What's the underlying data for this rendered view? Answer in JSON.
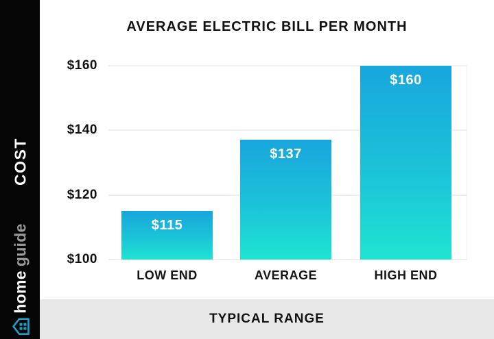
{
  "header": {
    "title": "AVERAGE ELECTRIC BILL PER MONTH"
  },
  "sidebar": {
    "cost_label": "COST",
    "brand_home": "home",
    "brand_guide": "guide"
  },
  "footer": {
    "label": "TYPICAL RANGE"
  },
  "chart_data": {
    "type": "bar",
    "title": "AVERAGE ELECTRIC BILL PER MONTH",
    "categories": [
      "LOW END",
      "AVERAGE",
      "HIGH END"
    ],
    "values": [
      115,
      137,
      160
    ],
    "bar_labels": [
      "$115",
      "$137",
      "$160"
    ],
    "y_ticks": [
      {
        "label": "$160",
        "value": 160
      },
      {
        "label": "$140",
        "value": 140
      },
      {
        "label": "$120",
        "value": 120
      },
      {
        "label": "$100",
        "value": 100
      }
    ],
    "ylim": [
      100,
      160
    ],
    "xlabel": "TYPICAL RANGE",
    "ylabel": "COST",
    "grid": "horizontal",
    "legend": "none",
    "colors": {
      "bar_gradient_top": "#18a6dd",
      "bar_gradient_bottom": "#1fe4d2",
      "gridline": "#efefef",
      "sidebar_bg": "#050505",
      "footer_bg": "#e8e8e8",
      "brand_teal": "#1b9fc6",
      "brand_guide_gray": "#9a9a9a",
      "text": "#121212",
      "bar_label_text": "#ffffff"
    }
  }
}
